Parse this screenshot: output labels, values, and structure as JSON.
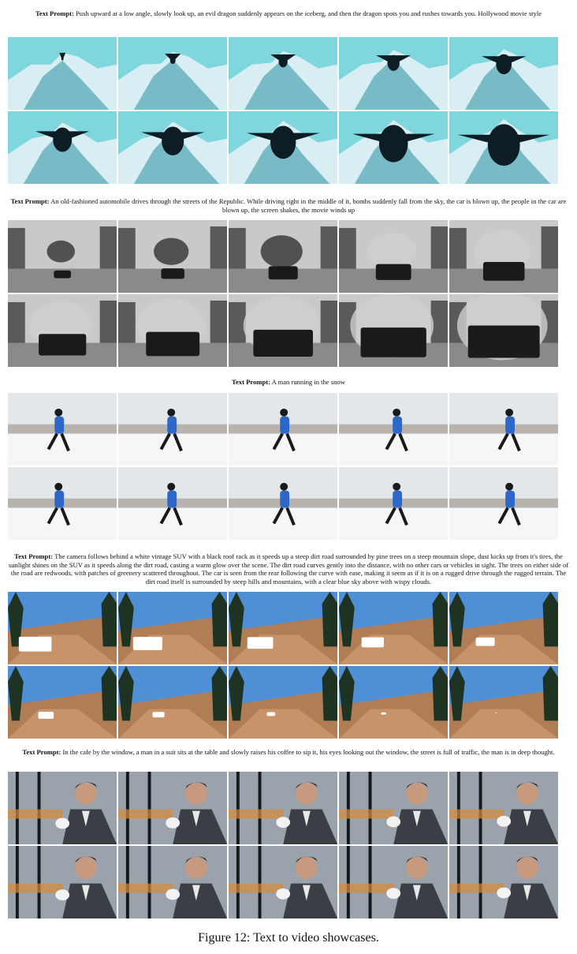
{
  "sections": [
    {
      "label": "Text Prompt:",
      "text": "Push upward at a low angle, slowly look up, an evil dragon suddenly appears on the iceberg, and then the dragon spots you and rushes towards you. Hollywood movie style",
      "theme": "dragon",
      "palette": {
        "sky": "#7fd6dc",
        "main": "#d8eef2",
        "dark": "#0e1c24",
        "accent": "#2a8fa0"
      }
    },
    {
      "label": "Text Prompt:",
      "text": "An old-fashioned automobile drives through the streets of the Republic. While driving right in the middle of it, bombs suddenly fall from the sky, the car is blown up, the people in the car are blown up, the screen shakes, the movie winds up",
      "theme": "bw-car",
      "palette": {
        "sky": "#c9c9c9",
        "main": "#8a8a8a",
        "dark": "#1a1a1a",
        "accent": "#5a5a5a"
      }
    },
    {
      "label": "Text Prompt:",
      "text": "A man running in the snow",
      "theme": "runner",
      "palette": {
        "sky": "#e4e7ea",
        "main": "#f4f6f8",
        "dark": "#1a1a1a",
        "accent": "#2c67c9"
      }
    },
    {
      "label": "Text Prompt:",
      "text": "The camera follows behind a white vintage SUV with a black roof rack as it speeds up a steep dirt road surrounded by pine trees on a steep mountain slope, dust kicks up from it's tires, the sunlight shines on the SUV as it speeds along the dirt road, casting a warm glow over the scene. The dirt road curves gently into the distance, with no other cars or vehicles in sight. The trees on either side of the road are redwoods, with patches of greenery scattered throughout. The car is seen from the rear following the curve with ease, making it seem as if it is on a rugged drive through the rugged terrain. The dirt road itself is surrounded by steep hills and mountains, with a clear blue sky above with wispy clouds.",
      "theme": "suv",
      "palette": {
        "sky": "#4f8fd6",
        "main": "#c9936a",
        "dark": "#1f3322",
        "accent": "#ffffff"
      }
    },
    {
      "label": "Text Prompt:",
      "text": "In the cafe by the window, a man in a suit sits at the table and slowly raises his coffee to sip it, his eyes looking out the window, the street is full of traffic, the man is in deep thought.",
      "theme": "cafe",
      "palette": {
        "sky": "#9aa3ab",
        "main": "#3b3f45",
        "dark": "#16181b",
        "accent": "#d98a3a"
      }
    }
  ],
  "caption": "Figure 12: Text to video showcases."
}
